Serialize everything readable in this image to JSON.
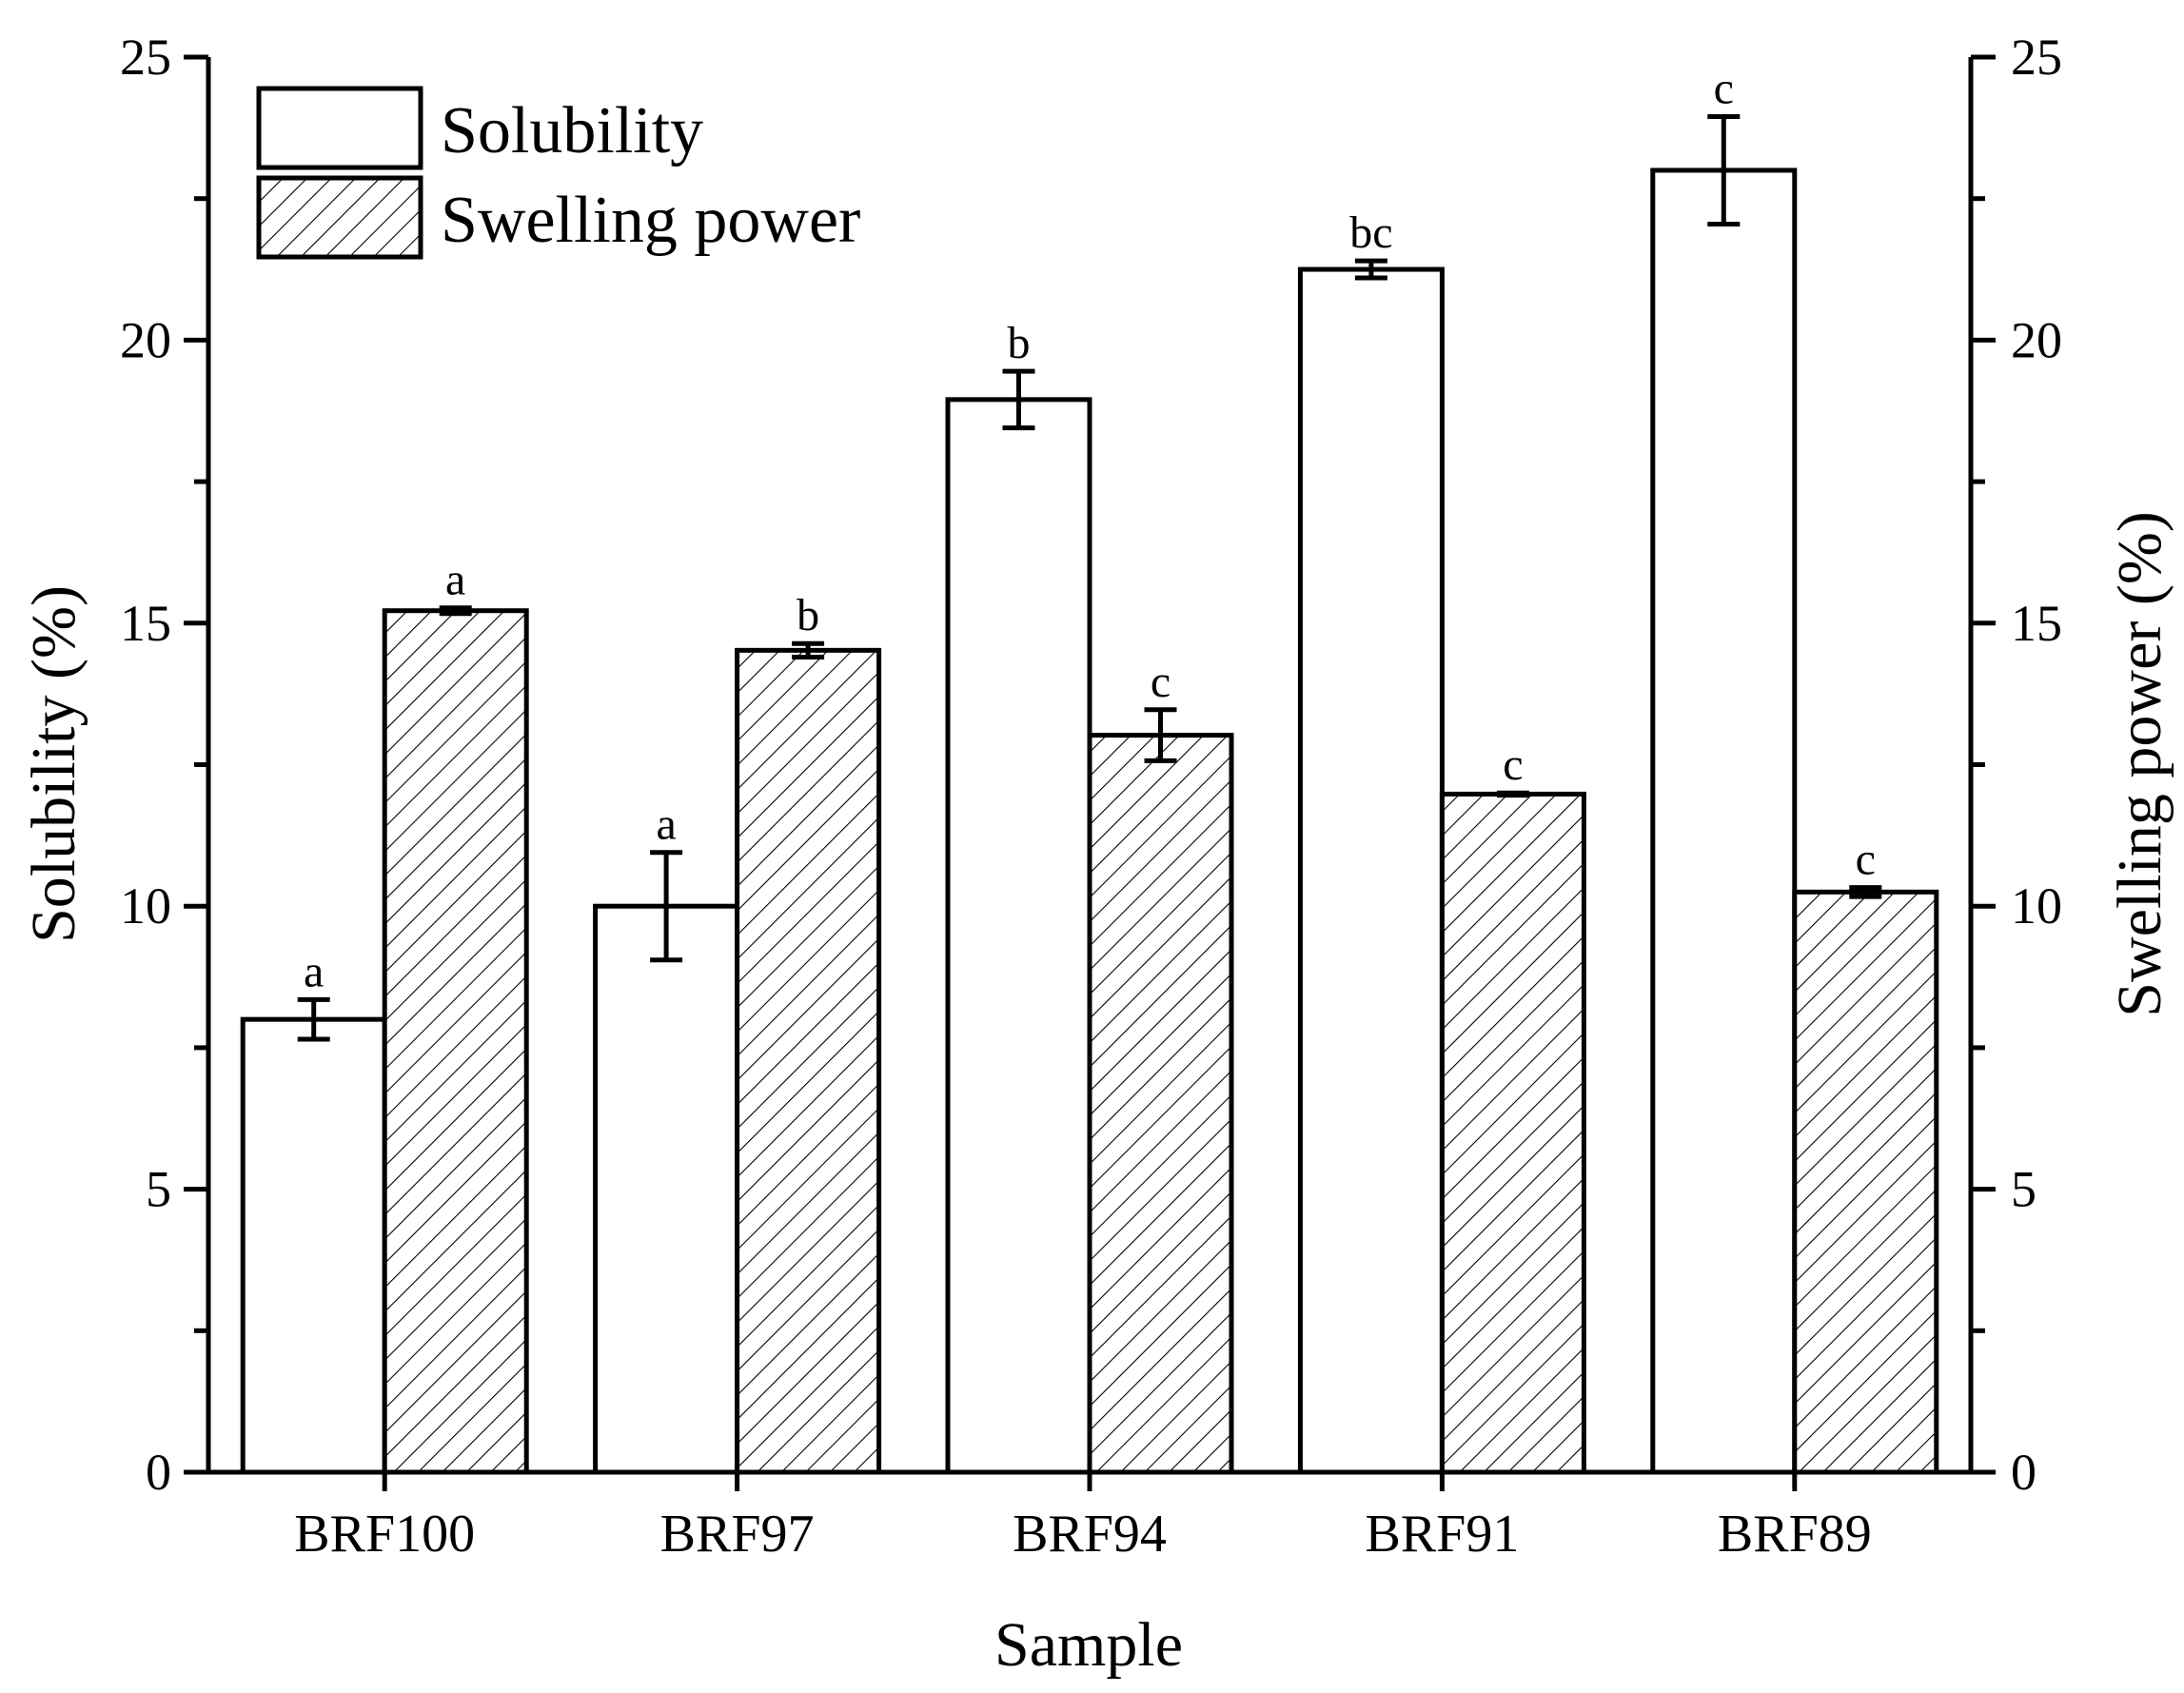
{
  "chart_data": {
    "type": "bar",
    "categories": [
      "BRF100",
      "BRF97",
      "BRF94",
      "BRF91",
      "BRF89"
    ],
    "series": [
      {
        "name": "Solubility",
        "axis": "left",
        "pattern": "none",
        "values": [
          8.0,
          10.0,
          18.95,
          21.25,
          23.0
        ],
        "errors": [
          0.35,
          0.95,
          0.5,
          0.15,
          0.95
        ],
        "significance": [
          "a",
          "a",
          "b",
          "bc",
          "c"
        ]
      },
      {
        "name": "Swelling power",
        "axis": "right",
        "pattern": "hatch",
        "values": [
          15.22,
          14.52,
          13.02,
          11.98,
          10.25
        ],
        "errors": [
          0.05,
          0.12,
          0.45,
          0.02,
          0.08
        ],
        "significance": [
          "a",
          "b",
          "c",
          "c",
          "c"
        ]
      }
    ],
    "xlabel": "Sample",
    "ylabel": "Solubility (%)",
    "y2label": "Swelling power (%)",
    "ylim": [
      0,
      25
    ],
    "y2lim": [
      0,
      25
    ],
    "yticks": [
      "0",
      "5",
      "10",
      "15",
      "20",
      "25"
    ],
    "y2ticks": [
      "0",
      "5",
      "10",
      "15",
      "20",
      "25"
    ],
    "legend": {
      "position": "top-left",
      "entries": [
        "Solubility",
        "Swelling power"
      ]
    },
    "grid": false
  }
}
